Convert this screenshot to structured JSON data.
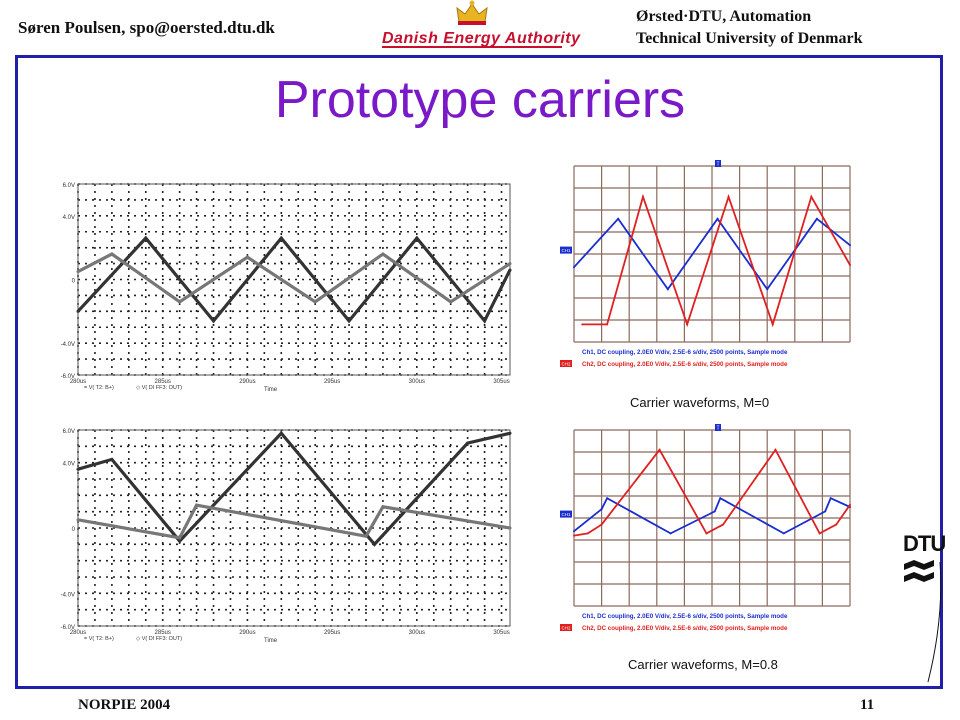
{
  "header": {
    "author": "Søren Poulsen, spo@oersted.dtu.dk",
    "institute_line1": "Ørsted·DTU, Automation",
    "institute_line2": "Technical University of Denmark",
    "logo_text": "Danish Energy Authority"
  },
  "slide": {
    "title": "Prototype carriers",
    "footer_left": "NORPIE 2004",
    "page_number": "11",
    "dtu_logo_text": "DTU"
  },
  "colors": {
    "frame": "#1f1fa8",
    "title": "#7a19c8",
    "sim_dark": "#333333",
    "sim_light": "#777777",
    "scope_red": "#e02020",
    "scope_blue": "#1a2dd0",
    "scope_grid": "#8b6b5e"
  },
  "sim_legend": [
    "= V( T2: B+)",
    "◇ V( DI FF3: OUT)"
  ],
  "scope_captions": {
    "top": "Carrier waveforms, M=0",
    "bottom": "Carrier waveforms, M=0.8"
  },
  "scope_info": {
    "ch1": "Ch1, DC coupling, 2.0E0 V/div, 2.5E-6 s/div, 2500 points, Sample mode",
    "ch2": "Ch2, DC coupling, 2.0E0 V/div, 2.5E-6 s/div, 2500 points, Sample mode",
    "ch1_marker": "CH1",
    "ch2_marker": "CH2",
    "trigger_marker": "T"
  },
  "chart_data": [
    {
      "type": "line",
      "title": "",
      "xlabel": "Time",
      "ylabel": "",
      "x_unit": "us",
      "xlim": [
        280,
        305.5
      ],
      "ylim": [
        -6,
        6
      ],
      "xticks": [
        "280us",
        "285us",
        "290us",
        "295us",
        "300us",
        "305us"
      ],
      "yticks": [
        "6.0V",
        "4.0V",
        "0",
        "-4.0V",
        "-6.0V"
      ],
      "series": [
        {
          "name": "V( T2: B+)",
          "color": "dark",
          "x": [
            280,
            284,
            288,
            292,
            296,
            300,
            304,
            305.5
          ],
          "y": [
            -2,
            2.6,
            -2.6,
            2.6,
            -2.6,
            2.6,
            -2.6,
            0.6
          ]
        },
        {
          "name": "V( DI FF3: OUT)",
          "color": "light",
          "x": [
            280,
            282,
            286,
            290,
            294,
            298,
            302,
            305.5
          ],
          "y": [
            0.5,
            1.6,
            -1.4,
            1.4,
            -1.4,
            1.6,
            -1.4,
            1.0
          ]
        }
      ]
    },
    {
      "type": "line",
      "title": "",
      "xlabel": "Time",
      "ylabel": "",
      "x_unit": "us",
      "xlim": [
        280,
        305.5
      ],
      "ylim": [
        -6,
        6
      ],
      "xticks": [
        "280us",
        "285us",
        "290us",
        "295us",
        "300us",
        "305us"
      ],
      "yticks": [
        "6.0V",
        "4.0V",
        "0",
        "-4.0V",
        "-6.0V"
      ],
      "series": [
        {
          "name": "V( T2: B+)",
          "color": "dark",
          "x": [
            280,
            282,
            286,
            292,
            297.5,
            303,
            305.5
          ],
          "y": [
            3.6,
            4.2,
            -0.8,
            5.8,
            -1.0,
            5.2,
            5.8
          ]
        },
        {
          "name": "V( DI FF3: OUT)",
          "color": "light",
          "x": [
            280,
            286,
            287,
            297,
            298,
            305.5
          ],
          "y": [
            0.5,
            -0.6,
            1.4,
            -0.5,
            1.3,
            0.0
          ]
        }
      ]
    },
    {
      "type": "line",
      "title": "Carrier waveforms, M=0",
      "xlabel": "",
      "ylabel": "",
      "x_unit": "div",
      "xlim": [
        0,
        10
      ],
      "ylim": [
        -4,
        4
      ],
      "series": [
        {
          "name": "Ch1",
          "color": "blue",
          "x": [
            0,
            1.6,
            3.4,
            5.2,
            7.0,
            8.8,
            10
          ],
          "y": [
            -0.6,
            1.6,
            -1.6,
            1.6,
            -1.6,
            1.6,
            0.4
          ]
        },
        {
          "name": "Ch2",
          "color": "red",
          "x": [
            0.3,
            1.2,
            2.5,
            4.1,
            5.6,
            7.2,
            8.6,
            10
          ],
          "y": [
            -3.2,
            -3.2,
            2.6,
            -3.2,
            2.6,
            -3.2,
            2.6,
            -0.5
          ]
        }
      ]
    },
    {
      "type": "line",
      "title": "Carrier waveforms, M=0.8",
      "xlabel": "",
      "ylabel": "",
      "x_unit": "div",
      "xlim": [
        0,
        10
      ],
      "ylim": [
        -4,
        4
      ],
      "series": [
        {
          "name": "Ch1",
          "color": "blue",
          "x": [
            0,
            1.0,
            1.2,
            3.5,
            5.1,
            5.3,
            7.6,
            9.1,
            9.3,
            10
          ],
          "y": [
            -0.6,
            0.4,
            0.9,
            -0.7,
            0.3,
            0.9,
            -0.7,
            0.3,
            0.9,
            0.5
          ]
        },
        {
          "name": "Ch2",
          "color": "red",
          "x": [
            0,
            0.5,
            1.0,
            3.1,
            4.8,
            5.4,
            7.3,
            8.9,
            9.5,
            10
          ],
          "y": [
            -0.8,
            -0.7,
            -0.3,
            3.1,
            -0.7,
            -0.3,
            3.1,
            -0.7,
            -0.3,
            0.6
          ]
        }
      ]
    }
  ]
}
